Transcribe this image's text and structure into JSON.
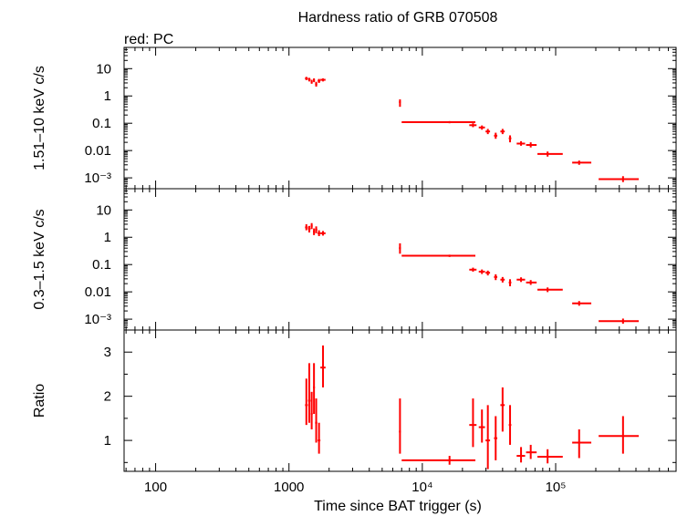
{
  "title": "Hardness ratio of GRB 070508",
  "subtitle": "red: PC",
  "xlabel": "Time since BAT trigger (s)",
  "colors": {
    "data": "#ff0000",
    "axes": "#000000"
  },
  "chart_data": [
    {
      "type": "scatter",
      "ylabel": "1.51–10 keV c/s",
      "yscale": "log",
      "ylim": [
        0.0004,
        60
      ],
      "yticks": [
        {
          "v": 10,
          "t": "10"
        },
        {
          "v": 1,
          "t": "1"
        },
        {
          "v": 0.1,
          "t": "0.1"
        },
        {
          "v": 0.01,
          "t": "0.01"
        },
        {
          "v": 0.001,
          "t": "10⁻³"
        }
      ],
      "points": [
        {
          "x": 1350,
          "y": 4.4,
          "xl": 1320,
          "xh": 1385,
          "yl": 3.8,
          "yh": 5.0
        },
        {
          "x": 1420,
          "y": 4.0,
          "xl": 1390,
          "xh": 1450,
          "yl": 3.4,
          "yh": 4.6
        },
        {
          "x": 1480,
          "y": 3.3,
          "xl": 1455,
          "xh": 1505,
          "yl": 2.8,
          "yh": 3.9
        },
        {
          "x": 1540,
          "y": 3.8,
          "xl": 1515,
          "xh": 1565,
          "yl": 3.2,
          "yh": 4.4
        },
        {
          "x": 1600,
          "y": 2.7,
          "xl": 1570,
          "xh": 1630,
          "yl": 2.2,
          "yh": 3.3
        },
        {
          "x": 1680,
          "y": 3.6,
          "xl": 1640,
          "xh": 1720,
          "yl": 3.0,
          "yh": 4.2
        },
        {
          "x": 1800,
          "y": 3.9,
          "xl": 1720,
          "xh": 1880,
          "yl": 3.4,
          "yh": 4.4
        },
        {
          "x": 6800,
          "y": 0.6,
          "xl": 6680,
          "xh": 6900,
          "yl": 0.4,
          "yh": 0.75
        },
        {
          "x": 16000,
          "y": 0.11,
          "xl": 7000,
          "xh": 25000,
          "yl": 0.1,
          "yh": 0.12
        },
        {
          "x": 24000,
          "y": 0.085,
          "xl": 22500,
          "xh": 25500,
          "yl": 0.072,
          "yh": 0.1
        },
        {
          "x": 28000,
          "y": 0.07,
          "xl": 26500,
          "xh": 29500,
          "yl": 0.058,
          "yh": 0.083
        },
        {
          "x": 31000,
          "y": 0.05,
          "xl": 29800,
          "xh": 32200,
          "yl": 0.04,
          "yh": 0.062
        },
        {
          "x": 35500,
          "y": 0.035,
          "xl": 34500,
          "xh": 36500,
          "yl": 0.027,
          "yh": 0.045
        },
        {
          "x": 40000,
          "y": 0.05,
          "xl": 38500,
          "xh": 41500,
          "yl": 0.04,
          "yh": 0.062
        },
        {
          "x": 45500,
          "y": 0.028,
          "xl": 44500,
          "xh": 46500,
          "yl": 0.02,
          "yh": 0.036
        },
        {
          "x": 55000,
          "y": 0.018,
          "xl": 51000,
          "xh": 59000,
          "yl": 0.015,
          "yh": 0.022
        },
        {
          "x": 65000,
          "y": 0.016,
          "xl": 60000,
          "xh": 72000,
          "yl": 0.013,
          "yh": 0.02
        },
        {
          "x": 87000,
          "y": 0.0075,
          "xl": 73000,
          "xh": 113000,
          "yl": 0.006,
          "yh": 0.0092
        },
        {
          "x": 150000,
          "y": 0.0036,
          "xl": 133000,
          "xh": 185000,
          "yl": 0.003,
          "yh": 0.0043
        },
        {
          "x": 320000,
          "y": 0.0009,
          "xl": 210000,
          "xh": 420000,
          "yl": 0.0007,
          "yh": 0.00115
        }
      ]
    },
    {
      "type": "scatter",
      "ylabel": "0.3–1.5 keV c/s",
      "yscale": "log",
      "ylim": [
        0.0004,
        60
      ],
      "yticks": [
        {
          "v": 10,
          "t": "10"
        },
        {
          "v": 1,
          "t": "1"
        },
        {
          "v": 0.1,
          "t": "0.1"
        },
        {
          "v": 0.01,
          "t": "0.01"
        },
        {
          "v": 0.001,
          "t": "10⁻³"
        }
      ],
      "points": [
        {
          "x": 1350,
          "y": 2.3,
          "xl": 1320,
          "xh": 1385,
          "yl": 1.8,
          "yh": 3.0
        },
        {
          "x": 1420,
          "y": 2.0,
          "xl": 1390,
          "xh": 1450,
          "yl": 1.5,
          "yh": 2.6
        },
        {
          "x": 1480,
          "y": 2.6,
          "xl": 1455,
          "xh": 1505,
          "yl": 2.0,
          "yh": 3.3
        },
        {
          "x": 1540,
          "y": 1.6,
          "xl": 1515,
          "xh": 1565,
          "yl": 1.2,
          "yh": 2.1
        },
        {
          "x": 1600,
          "y": 1.9,
          "xl": 1570,
          "xh": 1630,
          "yl": 1.4,
          "yh": 2.5
        },
        {
          "x": 1680,
          "y": 1.4,
          "xl": 1640,
          "xh": 1720,
          "yl": 1.1,
          "yh": 1.8
        },
        {
          "x": 1800,
          "y": 1.4,
          "xl": 1720,
          "xh": 1880,
          "yl": 1.15,
          "yh": 1.7
        },
        {
          "x": 6800,
          "y": 0.4,
          "xl": 6680,
          "xh": 6900,
          "yl": 0.25,
          "yh": 0.6
        },
        {
          "x": 16000,
          "y": 0.21,
          "xl": 7000,
          "xh": 25000,
          "yl": 0.19,
          "yh": 0.23
        },
        {
          "x": 24000,
          "y": 0.065,
          "xl": 22500,
          "xh": 25500,
          "yl": 0.055,
          "yh": 0.077
        },
        {
          "x": 28000,
          "y": 0.055,
          "xl": 26500,
          "xh": 29500,
          "yl": 0.045,
          "yh": 0.066
        },
        {
          "x": 31000,
          "y": 0.05,
          "xl": 29800,
          "xh": 32200,
          "yl": 0.04,
          "yh": 0.06
        },
        {
          "x": 35500,
          "y": 0.035,
          "xl": 34500,
          "xh": 36500,
          "yl": 0.027,
          "yh": 0.044
        },
        {
          "x": 40000,
          "y": 0.028,
          "xl": 38500,
          "xh": 41500,
          "yl": 0.022,
          "yh": 0.035
        },
        {
          "x": 45500,
          "y": 0.022,
          "xl": 44500,
          "xh": 46500,
          "yl": 0.016,
          "yh": 0.029
        },
        {
          "x": 55000,
          "y": 0.028,
          "xl": 51000,
          "xh": 59000,
          "yl": 0.023,
          "yh": 0.034
        },
        {
          "x": 65000,
          "y": 0.022,
          "xl": 60000,
          "xh": 72000,
          "yl": 0.018,
          "yh": 0.027
        },
        {
          "x": 87000,
          "y": 0.012,
          "xl": 73000,
          "xh": 113000,
          "yl": 0.0098,
          "yh": 0.0145
        },
        {
          "x": 150000,
          "y": 0.0038,
          "xl": 133000,
          "xh": 185000,
          "yl": 0.0031,
          "yh": 0.0046
        },
        {
          "x": 320000,
          "y": 0.00085,
          "xl": 210000,
          "xh": 420000,
          "yl": 0.00068,
          "yh": 0.00105
        }
      ]
    },
    {
      "type": "scatter",
      "ylabel": "Ratio",
      "yscale": "linear",
      "ylim": [
        0.3,
        3.5
      ],
      "yticks": [
        {
          "v": 3,
          "t": "3"
        },
        {
          "v": 2,
          "t": "2"
        },
        {
          "v": 1,
          "t": "1"
        }
      ],
      "points": [
        {
          "x": 1350,
          "y": 1.8,
          "xl": 1320,
          "xh": 1385,
          "yl": 1.35,
          "yh": 2.4
        },
        {
          "x": 1420,
          "y": 1.9,
          "xl": 1390,
          "xh": 1450,
          "yl": 1.4,
          "yh": 2.75
        },
        {
          "x": 1480,
          "y": 1.6,
          "xl": 1455,
          "xh": 1505,
          "yl": 1.25,
          "yh": 2.1
        },
        {
          "x": 1540,
          "y": 2.2,
          "xl": 1515,
          "xh": 1565,
          "yl": 1.6,
          "yh": 2.75
        },
        {
          "x": 1600,
          "y": 1.4,
          "xl": 1570,
          "xh": 1630,
          "yl": 0.95,
          "yh": 1.95
        },
        {
          "x": 1680,
          "y": 1.0,
          "xl": 1640,
          "xh": 1720,
          "yl": 0.7,
          "yh": 1.4
        },
        {
          "x": 1800,
          "y": 2.65,
          "xl": 1720,
          "xh": 1880,
          "yl": 2.2,
          "yh": 3.15
        },
        {
          "x": 6800,
          "y": 1.2,
          "xl": 6680,
          "xh": 6900,
          "yl": 0.7,
          "yh": 1.95
        },
        {
          "x": 16000,
          "y": 0.55,
          "xl": 7000,
          "xh": 25000,
          "yl": 0.45,
          "yh": 0.65
        },
        {
          "x": 24000,
          "y": 1.35,
          "xl": 22500,
          "xh": 25500,
          "yl": 0.85,
          "yh": 1.95
        },
        {
          "x": 28000,
          "y": 1.3,
          "xl": 26500,
          "xh": 29500,
          "yl": 0.95,
          "yh": 1.7
        },
        {
          "x": 31000,
          "y": 1.0,
          "xl": 29800,
          "xh": 32200,
          "yl": 0.35,
          "yh": 1.8
        },
        {
          "x": 35500,
          "y": 1.05,
          "xl": 34500,
          "xh": 36500,
          "yl": 0.55,
          "yh": 1.55
        },
        {
          "x": 40000,
          "y": 1.8,
          "xl": 38500,
          "xh": 41500,
          "yl": 1.2,
          "yh": 2.2
        },
        {
          "x": 45500,
          "y": 1.35,
          "xl": 44500,
          "xh": 46500,
          "yl": 0.9,
          "yh": 1.8
        },
        {
          "x": 55000,
          "y": 0.65,
          "xl": 51000,
          "xh": 59000,
          "yl": 0.5,
          "yh": 0.85
        },
        {
          "x": 65000,
          "y": 0.73,
          "xl": 60000,
          "xh": 72000,
          "yl": 0.58,
          "yh": 0.9
        },
        {
          "x": 87000,
          "y": 0.63,
          "xl": 73000,
          "xh": 113000,
          "yl": 0.48,
          "yh": 0.8
        },
        {
          "x": 150000,
          "y": 0.95,
          "xl": 133000,
          "xh": 185000,
          "yl": 0.6,
          "yh": 1.25
        },
        {
          "x": 320000,
          "y": 1.1,
          "xl": 210000,
          "xh": 420000,
          "yl": 0.7,
          "yh": 1.55
        }
      ]
    }
  ],
  "xaxis": {
    "scale": "log",
    "xlim": [
      58,
      800000
    ],
    "ticks": [
      {
        "v": 100,
        "t": "100"
      },
      {
        "v": 1000,
        "t": "1000"
      },
      {
        "v": 10000,
        "t": "10⁴"
      },
      {
        "v": 100000,
        "t": "10⁵"
      }
    ]
  }
}
